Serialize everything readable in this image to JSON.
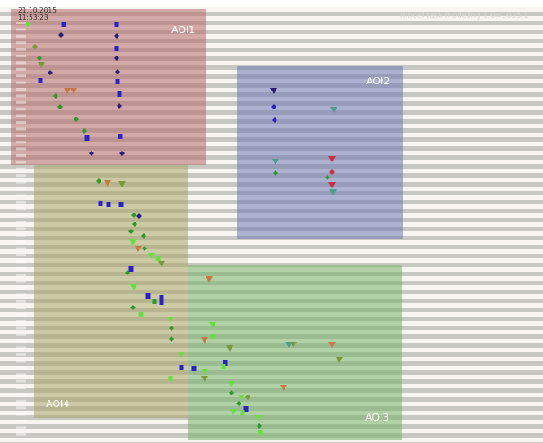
{
  "header": {
    "date": "21.10.2015",
    "time": "11:53:23",
    "watermark": "model task modeling 1.0=1005.1"
  },
  "aois": [
    {
      "label": "AOI1",
      "color": "#b4696a"
    },
    {
      "label": "AOI2",
      "color": "#6d78b2"
    },
    {
      "label": "AOI3",
      "color": "#76b069"
    },
    {
      "label": "AOI4",
      "color": "#a8a666"
    }
  ],
  "colors": {
    "stripe_light": "#f7f5ef",
    "stripe_dark": "#c8c8c2",
    "marker_blue": "#2a22c8",
    "marker_navy": "#2a1f7a",
    "marker_green": "#2a9a2a",
    "marker_lime": "#66e040",
    "marker_olive": "#7a9a3a",
    "marker_orange": "#c87840",
    "marker_red": "#c83040",
    "marker_teal": "#4aa090"
  }
}
